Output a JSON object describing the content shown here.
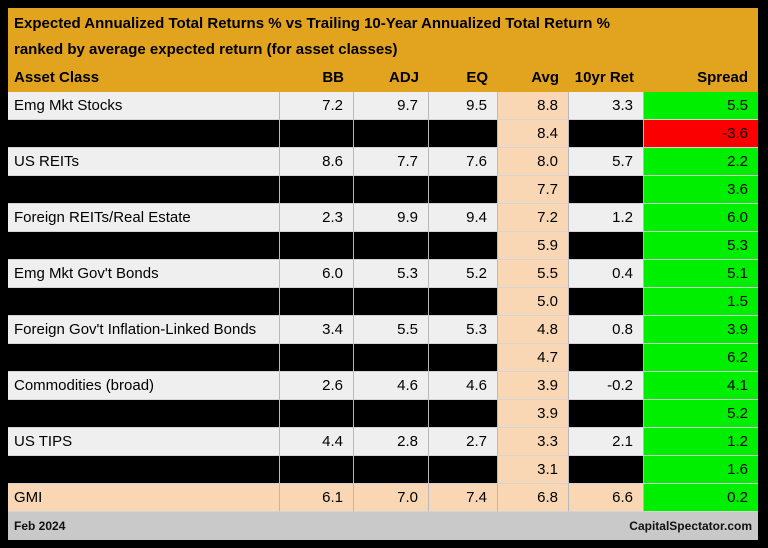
{
  "chart_data": {
    "type": "table",
    "title": "Expected Annualized Total Returns % vs Trailing 10-Year Annualized Total Return %",
    "subtitle": "ranked by average expected return (for asset classes)",
    "columns": [
      "Asset Class",
      "BB",
      "ADJ",
      "EQ",
      "Avg",
      "10yr Ret",
      "Spread"
    ],
    "rows": [
      {
        "asset_class": "Emg Mkt Stocks",
        "bb": "7.2",
        "adj": "9.7",
        "eq": "9.5",
        "avg": "8.8",
        "tenyr_ret": "3.3",
        "spread": "5.5",
        "row_type": "normal",
        "spread_color": "green"
      },
      {
        "asset_class": "",
        "bb": "",
        "adj": "",
        "eq": "",
        "avg": "8.4",
        "tenyr_ret": "",
        "spread": "-3.6",
        "row_type": "redacted",
        "spread_color": "red"
      },
      {
        "asset_class": "US REITs",
        "bb": "8.6",
        "adj": "7.7",
        "eq": "7.6",
        "avg": "8.0",
        "tenyr_ret": "5.7",
        "spread": "2.2",
        "row_type": "normal",
        "spread_color": "green"
      },
      {
        "asset_class": "",
        "bb": "",
        "adj": "",
        "eq": "",
        "avg": "7.7",
        "tenyr_ret": "",
        "spread": "3.6",
        "row_type": "redacted",
        "spread_color": "green"
      },
      {
        "asset_class": "Foreign REITs/Real Estate",
        "bb": "2.3",
        "adj": "9.9",
        "eq": "9.4",
        "avg": "7.2",
        "tenyr_ret": "1.2",
        "spread": "6.0",
        "row_type": "normal",
        "spread_color": "green"
      },
      {
        "asset_class": "",
        "bb": "",
        "adj": "",
        "eq": "",
        "avg": "5.9",
        "tenyr_ret": "",
        "spread": "5.3",
        "row_type": "redacted",
        "spread_color": "green"
      },
      {
        "asset_class": "Emg Mkt Gov't Bonds",
        "bb": "6.0",
        "adj": "5.3",
        "eq": "5.2",
        "avg": "5.5",
        "tenyr_ret": "0.4",
        "spread": "5.1",
        "row_type": "normal",
        "spread_color": "green"
      },
      {
        "asset_class": "",
        "bb": "",
        "adj": "",
        "eq": "",
        "avg": "5.0",
        "tenyr_ret": "",
        "spread": "1.5",
        "row_type": "redacted",
        "spread_color": "green"
      },
      {
        "asset_class": "Foreign Gov't Inflation-Linked Bonds",
        "bb": "3.4",
        "adj": "5.5",
        "eq": "5.3",
        "avg": "4.8",
        "tenyr_ret": "0.8",
        "spread": "3.9",
        "row_type": "normal",
        "spread_color": "green"
      },
      {
        "asset_class": "",
        "bb": "",
        "adj": "",
        "eq": "",
        "avg": "4.7",
        "tenyr_ret": "",
        "spread": "6.2",
        "row_type": "redacted",
        "spread_color": "green"
      },
      {
        "asset_class": "Commodities (broad)",
        "bb": "2.6",
        "adj": "4.6",
        "eq": "4.6",
        "avg": "3.9",
        "tenyr_ret": "-0.2",
        "spread": "4.1",
        "row_type": "normal",
        "spread_color": "green"
      },
      {
        "asset_class": "",
        "bb": "",
        "adj": "",
        "eq": "",
        "avg": "3.9",
        "tenyr_ret": "",
        "spread": "5.2",
        "row_type": "redacted",
        "spread_color": "green"
      },
      {
        "asset_class": "US TIPS",
        "bb": "4.4",
        "adj": "2.8",
        "eq": "2.7",
        "avg": "3.3",
        "tenyr_ret": "2.1",
        "spread": "1.2",
        "row_type": "normal",
        "spread_color": "green"
      },
      {
        "asset_class": "",
        "bb": "",
        "adj": "",
        "eq": "",
        "avg": "3.1",
        "tenyr_ret": "",
        "spread": "1.6",
        "row_type": "redacted",
        "spread_color": "green"
      },
      {
        "asset_class": "GMI",
        "bb": "6.1",
        "adj": "7.0",
        "eq": "7.4",
        "avg": "6.8",
        "tenyr_ret": "6.6",
        "spread": "0.2",
        "row_type": "gmi",
        "spread_color": "green"
      }
    ],
    "footer_left": "Feb 2024",
    "footer_right": "CapitalSpectator.com"
  },
  "colors": {
    "band_gold": "#E2A41E",
    "row_light": "#EFEFEF",
    "row_redacted": "#000000",
    "avg_column_peach": "#FAD7B4",
    "gmi_row_peach": "#FAD7B4",
    "spread_positive_green": "#00EE00",
    "spread_negative_red": "#FA0000",
    "footer_gray": "#C9C9C9",
    "background": "#000000"
  }
}
